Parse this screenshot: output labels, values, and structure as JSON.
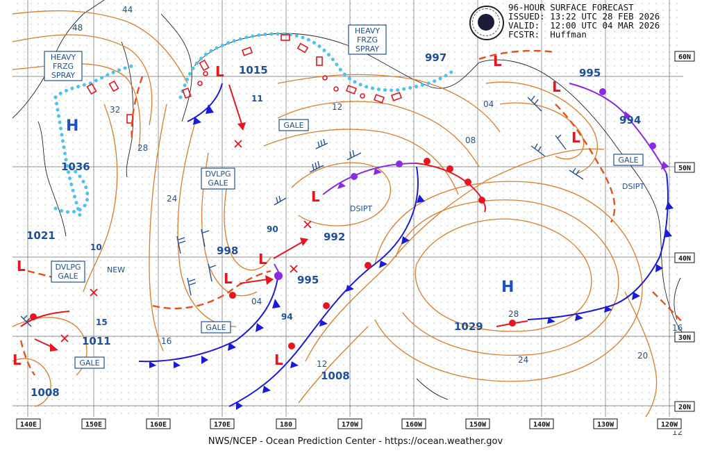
{
  "header": {
    "title": "96-HOUR SURFACE FORECAST",
    "issued": "ISSUED: 13:22 UTC 28 FEB 2026",
    "valid": "VALID:  12:00 UTC 04 MAR 2026",
    "forecaster": "FCSTR:  Huffman"
  },
  "footer": "NWS/NCEP - Ocean Prediction Center - https://ocean.weather.gov",
  "longitude_labels": [
    "140E",
    "150E",
    "160E",
    "170E",
    "180",
    "170W",
    "160W",
    "150W",
    "140W",
    "130W",
    "120W"
  ],
  "latitude_labels": [
    "60N",
    "50N",
    "40N",
    "30N",
    "20N"
  ],
  "pressure_centers": [
    {
      "type": "H",
      "value": "1036"
    },
    {
      "type": "H",
      "value": "1029"
    },
    {
      "type": "L",
      "value": "1015"
    },
    {
      "type": "L",
      "value": "998"
    },
    {
      "type": "L",
      "value": "995"
    },
    {
      "type": "L",
      "value": "992"
    },
    {
      "type": "L",
      "value": "997"
    },
    {
      "type": "L",
      "value": "995"
    },
    {
      "type": "L",
      "value": "994"
    },
    {
      "type": "L",
      "value": "1011"
    },
    {
      "type": "L",
      "value": "1008"
    },
    {
      "type": "L",
      "value": "1021"
    },
    {
      "type": "L",
      "value": "1008"
    }
  ],
  "isobar_labels": [
    "44",
    "48",
    "32",
    "28",
    "24",
    "12",
    "11",
    "08",
    "04",
    "10",
    "15",
    "16",
    "90",
    "94",
    "04",
    "12",
    "24",
    "20",
    "16",
    "28",
    "12"
  ],
  "boxed_labels": {
    "spray_west": [
      "HEAVY",
      "FRZG",
      "SPRAY"
    ],
    "spray_east": [
      "HEAVY",
      "FRZG",
      "SPRAY"
    ],
    "gale_1": "GALE",
    "dvlpg_gale_1": [
      "DVLPG",
      "GALE"
    ],
    "dvlpg_gale_2": [
      "DVLPG",
      "GALE"
    ],
    "gale_2": "GALE",
    "gale_3": "GALE",
    "gale_4": "GALE"
  },
  "plain_labels": {
    "new": "NEW",
    "dsipt_1": "DSIPT",
    "dsipt_2": "DSIPT"
  },
  "colors": {
    "isobar": "#e07b28",
    "cold_front": "#1a1adb",
    "warm_front": "#e8141e",
    "occluded_front": "#8a2be2",
    "freezing_spray": "#4cc3ee",
    "label": "#1e4f9a"
  },
  "logo": "noaa-logo"
}
